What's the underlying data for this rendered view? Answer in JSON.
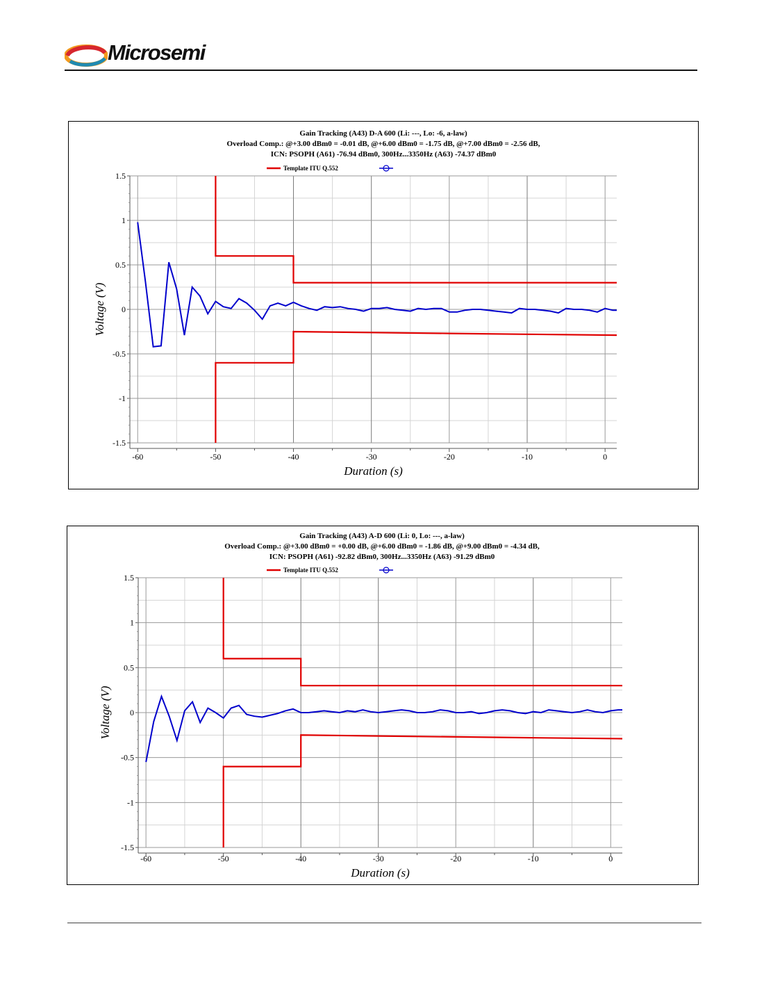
{
  "header": {
    "logo_text": "Microsemi",
    "brand_colors": {
      "red": "#d7262e",
      "orange": "#f29a1e",
      "teal": "#1f8ab1",
      "text": "#111111"
    }
  },
  "colors": {
    "template": "#e00000",
    "measured": "#0000cc",
    "grid_major": "#9a9a9a",
    "grid_minor": "#d4d4d4"
  },
  "chart_data": [
    {
      "type": "line",
      "title_lines": [
        "Gain Tracking (A43) D-A 600 (Li: ---, Lo: -6, a-law)",
        "Overload Comp.: @+3.00 dBm0 = -0.01 dB, @+6.00 dBm0 = -1.75 dB, @+7.00 dBm0 = -2.56 dB,",
        "ICN: PSOPH (A61) -76.94 dBm0, 300Hz...3350Hz (A63) -74.37 dBm0"
      ],
      "xlabel": "Duration (s)",
      "ylabel": "Voltage (V)",
      "xlim": [
        -61,
        1.5
      ],
      "ylim": [
        -1.5,
        1.5
      ],
      "xticks": [
        "-60",
        "-50",
        "-40",
        "-30",
        "-20",
        "-10",
        "0"
      ],
      "yticks": [
        "1.5",
        "1",
        "0.5",
        "0",
        "-0.5",
        "-1",
        "-1.5"
      ],
      "grid": true,
      "legend": {
        "placement": "top-center",
        "entries": [
          "Template ITU Q.552",
          ""
        ]
      },
      "series": [
        {
          "name": "Template ITU Q.552",
          "x": [
            -50,
            -50,
            -40,
            -40,
            1.5
          ],
          "y": [
            1.5,
            0.6,
            0.6,
            0.3,
            0.3
          ]
        },
        {
          "name": "Template ITU Q.552",
          "x": [
            -50,
            -50,
            -40,
            -40,
            -30,
            -20,
            -10,
            1.5
          ],
          "y": [
            -1.5,
            -0.6,
            -0.6,
            -0.25,
            -0.26,
            -0.27,
            -0.28,
            -0.29
          ]
        },
        {
          "name": "",
          "x": [
            -60,
            -59,
            -58,
            -57,
            -56,
            -55,
            -54,
            -53,
            -52,
            -51,
            -50,
            -49,
            -48,
            -47,
            -46,
            -45,
            -44,
            -43,
            -42,
            -41,
            -40,
            -39,
            -38,
            -37,
            -36,
            -35,
            -34,
            -33,
            -32,
            -31,
            -30,
            -29,
            -28,
            -27,
            -26,
            -25,
            -24,
            -23,
            -22,
            -21,
            -20,
            -19,
            -18,
            -17,
            -16,
            -15,
            -14,
            -13,
            -12,
            -11,
            -10,
            -9,
            -8,
            -7,
            -6,
            -5,
            -4,
            -3,
            -2,
            -1,
            0,
            1,
            1.5
          ],
          "y": [
            0.98,
            0.31,
            -0.42,
            -0.41,
            0.53,
            0.23,
            -0.29,
            0.25,
            0.15,
            -0.05,
            0.09,
            0.03,
            0.01,
            0.12,
            0.07,
            -0.01,
            -0.11,
            0.04,
            0.07,
            0.04,
            0.08,
            0.04,
            0.01,
            -0.01,
            0.03,
            0.02,
            0.03,
            0.01,
            0.0,
            -0.02,
            0.01,
            0.01,
            0.02,
            0.0,
            -0.01,
            -0.02,
            0.01,
            0.0,
            0.01,
            0.01,
            -0.03,
            -0.03,
            -0.01,
            0.0,
            0.0,
            -0.01,
            -0.02,
            -0.03,
            -0.04,
            0.01,
            0.0,
            0.0,
            -0.01,
            -0.02,
            -0.04,
            0.01,
            0.0,
            0.0,
            -0.01,
            -0.03,
            0.01,
            -0.01,
            -0.01
          ]
        }
      ]
    },
    {
      "type": "line",
      "title_lines": [
        "Gain Tracking (A43) A-D 600 (Li: 0, Lo: ---, a-law)",
        "Overload Comp.: @+3.00 dBm0 = +0.00 dB, @+6.00 dBm0 = -1.86 dB, @+9.00 dBm0 = -4.34 dB,",
        "ICN: PSOPH (A61) -92.82 dBm0, 300Hz...3350Hz (A63) -91.29 dBm0"
      ],
      "xlabel": "Duration (s)",
      "ylabel": "Voltage (V)",
      "xlim": [
        -61,
        1.5
      ],
      "ylim": [
        -1.5,
        1.5
      ],
      "xticks": [
        "-60",
        "-50",
        "-40",
        "-30",
        "-20",
        "-10",
        "0"
      ],
      "yticks": [
        "1.5",
        "1",
        "0.5",
        "0",
        "-0.5",
        "-1",
        "-1.5"
      ],
      "grid": true,
      "legend": {
        "placement": "top-center",
        "entries": [
          "Template ITU Q.552",
          ""
        ]
      },
      "series": [
        {
          "name": "Template ITU Q.552",
          "x": [
            -50,
            -50,
            -40,
            -40,
            1.5
          ],
          "y": [
            1.5,
            0.6,
            0.6,
            0.3,
            0.3
          ]
        },
        {
          "name": "Template ITU Q.552",
          "x": [
            -50,
            -50,
            -40,
            -40,
            -30,
            -20,
            -10,
            1.5
          ],
          "y": [
            -1.5,
            -0.6,
            -0.6,
            -0.25,
            -0.26,
            -0.27,
            -0.28,
            -0.29
          ]
        },
        {
          "name": "",
          "x": [
            -60,
            -59,
            -58,
            -57,
            -56,
            -55,
            -54,
            -53,
            -52,
            -51,
            -50,
            -49,
            -48,
            -47,
            -46,
            -45,
            -44,
            -43,
            -42,
            -41,
            -40,
            -39,
            -38,
            -37,
            -36,
            -35,
            -34,
            -33,
            -32,
            -31,
            -30,
            -29,
            -28,
            -27,
            -26,
            -25,
            -24,
            -23,
            -22,
            -21,
            -20,
            -19,
            -18,
            -17,
            -16,
            -15,
            -14,
            -13,
            -12,
            -11,
            -10,
            -9,
            -8,
            -7,
            -6,
            -5,
            -4,
            -3,
            -2,
            -1,
            0,
            1,
            1.5
          ],
          "y": [
            -0.55,
            -0.1,
            0.18,
            -0.04,
            -0.31,
            0.02,
            0.12,
            -0.11,
            0.05,
            0.0,
            -0.06,
            0.05,
            0.08,
            -0.02,
            -0.04,
            -0.05,
            -0.03,
            -0.01,
            0.02,
            0.04,
            0.0,
            0.0,
            0.01,
            0.02,
            0.01,
            0.0,
            0.02,
            0.01,
            0.03,
            0.01,
            0.0,
            0.01,
            0.02,
            0.03,
            0.02,
            0.0,
            0.0,
            0.01,
            0.03,
            0.02,
            0.0,
            0.0,
            0.01,
            -0.01,
            0.0,
            0.02,
            0.03,
            0.02,
            0.0,
            -0.01,
            0.01,
            0.0,
            0.03,
            0.02,
            0.01,
            0.0,
            0.01,
            0.03,
            0.01,
            0.0,
            0.02,
            0.03,
            0.03
          ]
        }
      ]
    }
  ]
}
